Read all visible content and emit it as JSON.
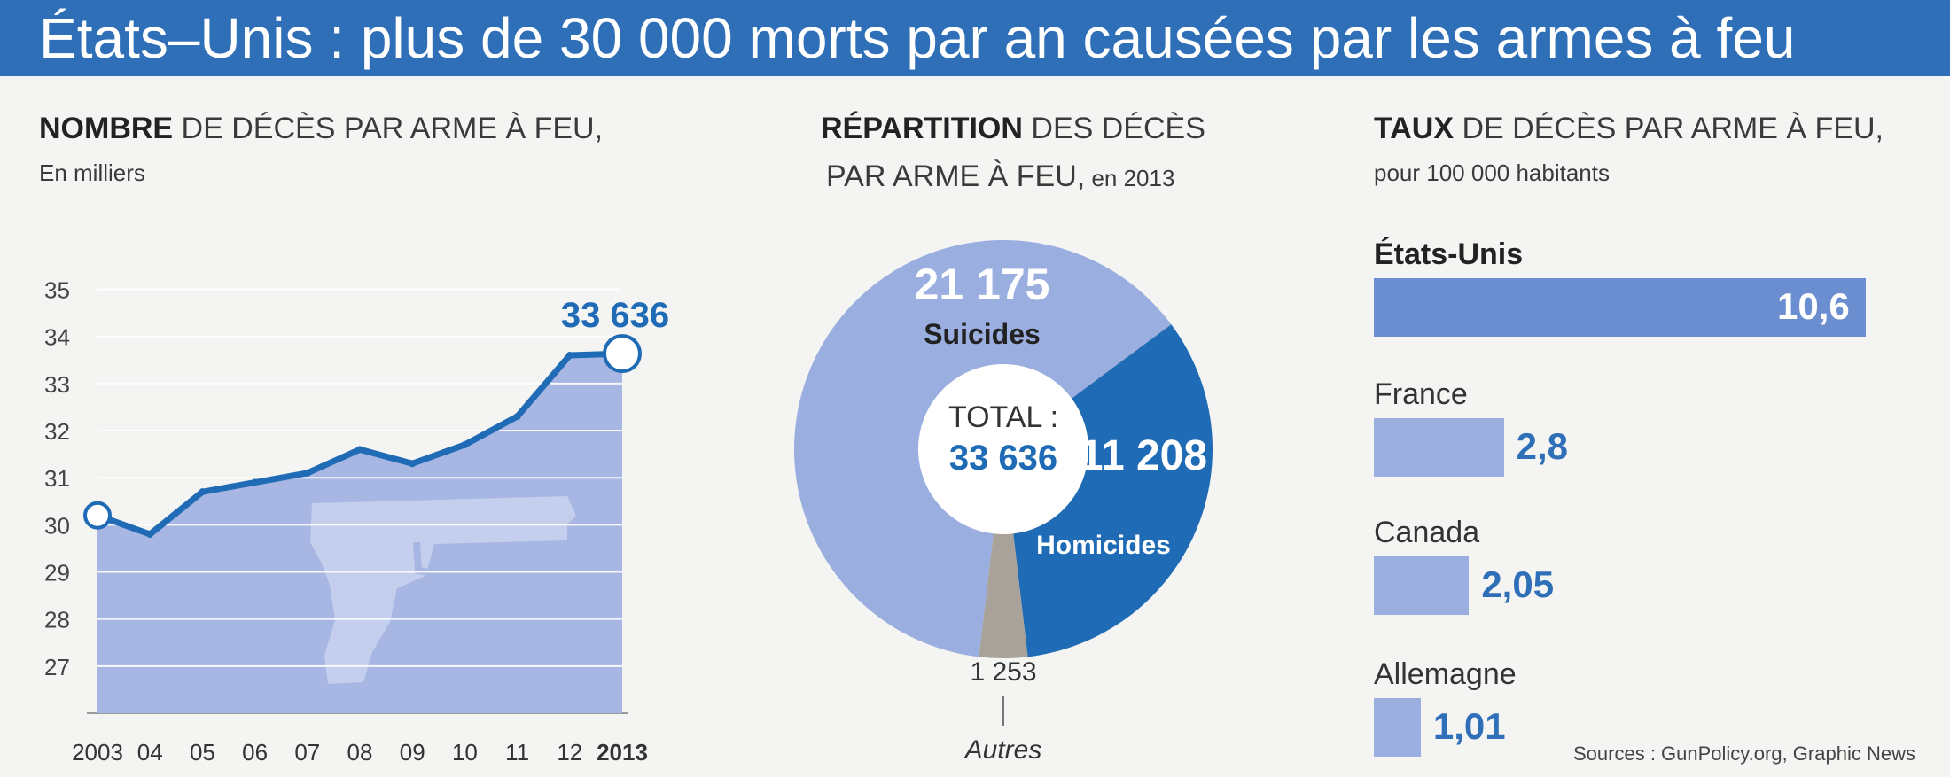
{
  "title": "États–Unis : plus de 30 000 morts par an causées par les armes à feu",
  "sources": "Sources : GunPolicy.org, Graphic News",
  "colors": {
    "title_bg": "#2f6fb8",
    "dark_blue": "#1f6bb5",
    "mid_blue": "#6a8ed0",
    "light_blue": "#9aaee0",
    "area_fill": "#a7b6e2",
    "gray": "#a8a29a"
  },
  "line_panel": {
    "heading_bold": "NOMBRE",
    "heading_rest": " DE DÉCÈS PAR ARME À FEU,",
    "subheading": "En milliers"
  },
  "donut_panel": {
    "heading_bold": "RÉPARTITION",
    "heading_rest": " DES DÉCÈS",
    "heading_line2": "PAR ARME À FEU,",
    "heading_year": " en 2013",
    "total_label": "TOTAL :",
    "total_value": "33 636"
  },
  "bar_panel": {
    "heading_bold": "TAUX",
    "heading_rest": " DE DÉCÈS PAR ARME À FEU,",
    "subheading": "pour 100 000 habitants"
  },
  "chart_data": [
    {
      "type": "area",
      "title": "NOMBRE DE DÉCÈS PAR ARME À FEU, En milliers",
      "x": [
        "2003",
        "04",
        "05",
        "06",
        "07",
        "08",
        "09",
        "10",
        "11",
        "12",
        "2013"
      ],
      "values": [
        30.2,
        29.8,
        30.7,
        30.9,
        31.1,
        31.6,
        31.3,
        31.7,
        32.3,
        33.6,
        33.636
      ],
      "yticks": [
        27,
        28,
        29,
        30,
        31,
        32,
        33,
        34,
        35
      ],
      "ylim": [
        26,
        35.5
      ],
      "grid": true,
      "end_label": "33 636",
      "icon": "pistol-icon"
    },
    {
      "type": "pie",
      "title": "RÉPARTITION DES DÉCÈS PAR ARME À FEU, en 2013",
      "slices": [
        {
          "label": "Suicides",
          "value": 21175,
          "display": "21 175",
          "color": "#9aaee0"
        },
        {
          "label": "Homicides",
          "value": 11208,
          "display": "11 208",
          "color": "#1f6bb5"
        },
        {
          "label": "Autres",
          "value": 1253,
          "display": "1 253",
          "color": "#a8a29a"
        }
      ],
      "total": "33 636"
    },
    {
      "type": "bar",
      "title": "TAUX DE DÉCÈS PAR ARME À FEU, pour 100 000 habitants",
      "categories": [
        "États-Unis",
        "France",
        "Canada",
        "Allemagne"
      ],
      "values": [
        10.6,
        2.8,
        2.05,
        1.01
      ],
      "value_labels": [
        "10,6",
        "2,8",
        "2,05",
        "1,01"
      ]
    }
  ]
}
